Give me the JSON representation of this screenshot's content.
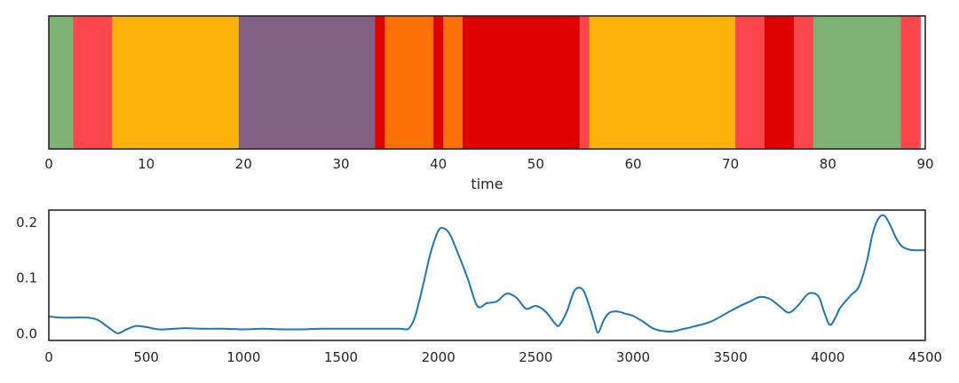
{
  "chart_data": [
    {
      "type": "timeline",
      "xlabel": "time",
      "xlim": [
        0,
        90
      ],
      "xticks": [
        0,
        10,
        20,
        30,
        40,
        50,
        60,
        70,
        80,
        90
      ],
      "segments": [
        {
          "start": 0,
          "end": 2.5,
          "color": "#7db274"
        },
        {
          "start": 2.5,
          "end": 6.5,
          "color": "#fd464c"
        },
        {
          "start": 6.5,
          "end": 19.5,
          "color": "#fdb209"
        },
        {
          "start": 19.5,
          "end": 33.5,
          "color": "#826085"
        },
        {
          "start": 33.5,
          "end": 34.5,
          "color": "#e00000"
        },
        {
          "start": 34.5,
          "end": 39.5,
          "color": "#fd7008"
        },
        {
          "start": 39.5,
          "end": 40.5,
          "color": "#e00000"
        },
        {
          "start": 40.5,
          "end": 42.5,
          "color": "#fd7008"
        },
        {
          "start": 42.5,
          "end": 54.5,
          "color": "#e00000"
        },
        {
          "start": 54.5,
          "end": 55.5,
          "color": "#fd464c"
        },
        {
          "start": 55.5,
          "end": 70.5,
          "color": "#fdb209"
        },
        {
          "start": 70.5,
          "end": 73.5,
          "color": "#fd464c"
        },
        {
          "start": 73.5,
          "end": 76.5,
          "color": "#e00000"
        },
        {
          "start": 76.5,
          "end": 78.5,
          "color": "#fd464c"
        },
        {
          "start": 78.5,
          "end": 87.5,
          "color": "#7db274"
        },
        {
          "start": 87.5,
          "end": 89.5,
          "color": "#fd464c"
        }
      ]
    },
    {
      "type": "line",
      "xlim": [
        0,
        4500
      ],
      "ylim": [
        -0.012,
        0.222
      ],
      "xticks": [
        0,
        500,
        1000,
        1500,
        2000,
        2500,
        3000,
        3500,
        4000,
        4500
      ],
      "yticks": [
        0.0,
        0.1,
        0.2
      ],
      "ytick_labels": [
        "0.0",
        "0.1",
        "0.2"
      ],
      "color": "#1f77b4",
      "x": [
        0,
        60,
        120,
        200,
        250,
        300,
        340,
        360,
        400,
        450,
        500,
        560,
        600,
        650,
        700,
        800,
        900,
        1000,
        1100,
        1200,
        1300,
        1400,
        1500,
        1600,
        1700,
        1800,
        1830,
        1850,
        1880,
        1920,
        1960,
        2000,
        2030,
        2060,
        2100,
        2150,
        2200,
        2250,
        2300,
        2350,
        2400,
        2450,
        2500,
        2550,
        2600,
        2620,
        2660,
        2700,
        2740,
        2770,
        2800,
        2820,
        2850,
        2880,
        2920,
        2960,
        3000,
        3050,
        3100,
        3150,
        3200,
        3250,
        3300,
        3400,
        3500,
        3550,
        3600,
        3650,
        3700,
        3750,
        3800,
        3850,
        3900,
        3950,
        3980,
        4010,
        4040,
        4060,
        4090,
        4120,
        4160,
        4200,
        4230,
        4260,
        4290,
        4320,
        4350,
        4380,
        4420,
        4460,
        4500
      ],
      "y": [
        0.031,
        0.029,
        0.029,
        0.029,
        0.025,
        0.013,
        0.003,
        0.001,
        0.008,
        0.014,
        0.012,
        0.008,
        0.008,
        0.009,
        0.01,
        0.009,
        0.009,
        0.008,
        0.009,
        0.008,
        0.008,
        0.009,
        0.009,
        0.009,
        0.009,
        0.009,
        0.008,
        0.01,
        0.03,
        0.085,
        0.145,
        0.185,
        0.189,
        0.178,
        0.145,
        0.1,
        0.05,
        0.055,
        0.058,
        0.072,
        0.065,
        0.045,
        0.05,
        0.04,
        0.018,
        0.015,
        0.04,
        0.078,
        0.08,
        0.055,
        0.022,
        0.002,
        0.025,
        0.038,
        0.04,
        0.036,
        0.032,
        0.022,
        0.01,
        0.005,
        0.004,
        0.008,
        0.012,
        0.022,
        0.041,
        0.05,
        0.058,
        0.066,
        0.063,
        0.05,
        0.038,
        0.052,
        0.072,
        0.068,
        0.04,
        0.016,
        0.03,
        0.045,
        0.058,
        0.07,
        0.085,
        0.13,
        0.18,
        0.207,
        0.212,
        0.195,
        0.172,
        0.157,
        0.151,
        0.15,
        0.15
      ]
    }
  ]
}
